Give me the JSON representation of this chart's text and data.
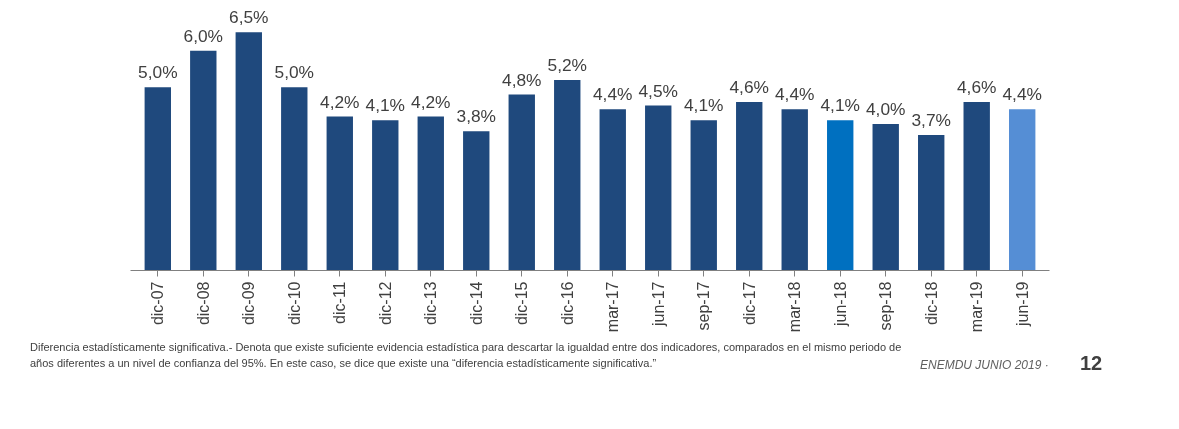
{
  "chart_data": {
    "type": "bar",
    "categories": [
      "dic-07",
      "dic-08",
      "dic-09",
      "dic-10",
      "dic-11",
      "dic-12",
      "dic-13",
      "dic-14",
      "dic-15",
      "dic-16",
      "mar-17",
      "jun-17",
      "sep-17",
      "dic-17",
      "mar-18",
      "jun-18",
      "sep-18",
      "dic-18",
      "mar-19",
      "jun-19"
    ],
    "values": [
      5.0,
      6.0,
      6.5,
      5.0,
      4.2,
      4.1,
      4.2,
      3.8,
      4.8,
      5.2,
      4.4,
      4.5,
      4.1,
      4.6,
      4.4,
      4.1,
      4.0,
      3.7,
      4.6,
      4.4
    ],
    "value_labels": [
      "5,0%",
      "6,0%",
      "6,5%",
      "5,0%",
      "4,2%",
      "4,1%",
      "4,2%",
      "3,8%",
      "4,8%",
      "5,2%",
      "4,4%",
      "4,5%",
      "4,1%",
      "4,6%",
      "4,4%",
      "4,1%",
      "4,0%",
      "3,7%",
      "4,6%",
      "4,4%"
    ],
    "colors": [
      "#1f497d",
      "#1f497d",
      "#1f497d",
      "#1f497d",
      "#1f497d",
      "#1f497d",
      "#1f497d",
      "#1f497d",
      "#1f497d",
      "#1f497d",
      "#1f497d",
      "#1f497d",
      "#1f497d",
      "#1f497d",
      "#1f497d",
      "#0070c0",
      "#1f497d",
      "#1f497d",
      "#1f497d",
      "#558ed5"
    ],
    "tick_labels": "x",
    "grid": false,
    "annotations": [
      "Diferencia estadísticamente significativa.- Denota que existe suficiente evidencia estadística para descartar la igualdad entre dos indicadores, comparados en el mismo periodo de años diferentes a un nivel de confianza del 95%. En este caso, se dice que existe una “diferencia estadísticamente significativa.”",
      "ENEMDU JUNIO 2019 ·",
      "12"
    ]
  }
}
